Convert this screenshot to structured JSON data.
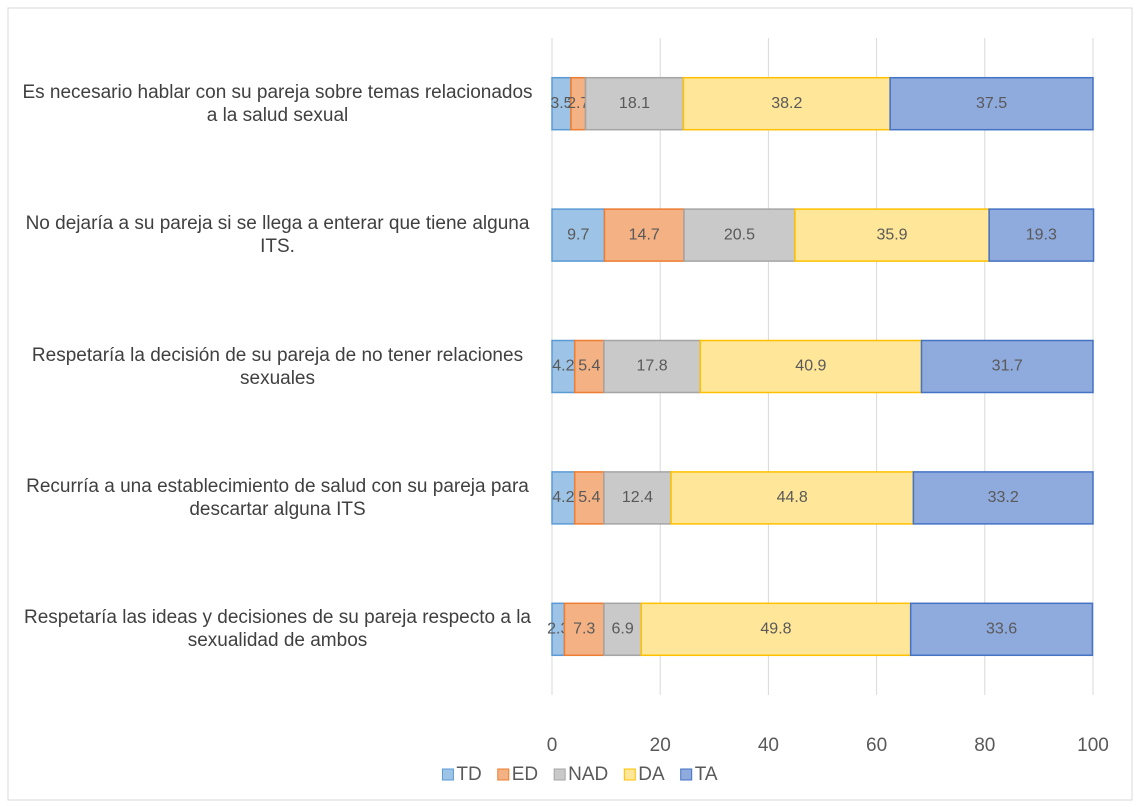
{
  "chart_data": {
    "type": "stacked_bar_horizontal",
    "categories": [
      "Es necesario hablar con su pareja sobre temas relacionados a la salud sexual",
      "No dejaría a su pareja si se llega a enterar que tiene alguna ITS.",
      "Respetaría la decisión de su pareja de no tener relaciones sexuales",
      "Recurría a una establecimiento de salud con su pareja para descartar alguna ITS",
      "Respetaría las ideas y decisiones de su pareja respecto a la sexualidad de ambos"
    ],
    "series": [
      {
        "name": "TD",
        "color": "#9dc3e6",
        "edge": "#5b9bd5",
        "values": [
          3.5,
          9.7,
          4.2,
          4.2,
          2.3
        ]
      },
      {
        "name": "ED",
        "color": "#f4b183",
        "edge": "#ed7d31",
        "values": [
          2.7,
          14.7,
          5.4,
          5.4,
          7.3
        ]
      },
      {
        "name": "NAD",
        "color": "#c9c9c9",
        "edge": "#a5a5a5",
        "values": [
          18.1,
          20.5,
          17.8,
          12.4,
          6.9
        ]
      },
      {
        "name": "DA",
        "color": "#ffe699",
        "edge": "#ffc000",
        "values": [
          38.2,
          35.9,
          40.9,
          44.8,
          49.8
        ]
      },
      {
        "name": "TA",
        "color": "#8faadc",
        "edge": "#4472c4",
        "values": [
          37.5,
          19.3,
          31.7,
          33.2,
          33.6
        ]
      }
    ],
    "xlim": [
      0,
      100
    ],
    "xticks": [
      0,
      20,
      40,
      60,
      80,
      100
    ],
    "grid": true,
    "legend": "bottom"
  }
}
